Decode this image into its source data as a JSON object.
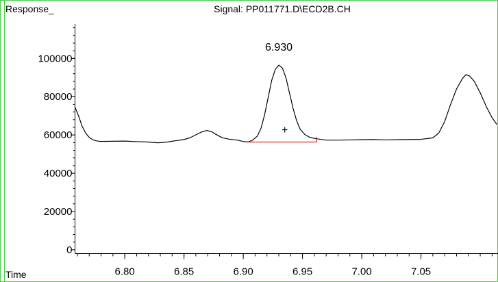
{
  "chart_data": {
    "type": "line",
    "title": "Signal: PP011771.D\\ECD2B.CH",
    "ylabel": "Response_",
    "xlabel": "Time",
    "xlim": [
      6.758,
      7.115
    ],
    "ylim": [
      -2000,
      118000
    ],
    "x_ticks": [
      {
        "value": 6.8,
        "label": "6.80"
      },
      {
        "value": 6.85,
        "label": "6.85"
      },
      {
        "value": 6.9,
        "label": "6.90"
      },
      {
        "value": 6.95,
        "label": "6.95"
      },
      {
        "value": 7.0,
        "label": "7.00"
      },
      {
        "value": 7.05,
        "label": "7.05"
      }
    ],
    "x_minor_step": 0.01,
    "y_ticks": [
      {
        "value": 0,
        "label": "0"
      },
      {
        "value": 20000,
        "label": "20000"
      },
      {
        "value": 40000,
        "label": "40000"
      },
      {
        "value": 60000,
        "label": "60000"
      },
      {
        "value": 80000,
        "label": "80000"
      },
      {
        "value": 100000,
        "label": "100000"
      }
    ],
    "y_minor_step": 4000,
    "grid": false,
    "series": [
      {
        "color": "#000000",
        "points": [
          [
            6.758,
            74500
          ],
          [
            6.761,
            70000
          ],
          [
            6.764,
            64500
          ],
          [
            6.767,
            61000
          ],
          [
            6.77,
            58700
          ],
          [
            6.773,
            57500
          ],
          [
            6.776,
            56900
          ],
          [
            6.78,
            56600
          ],
          [
            6.79,
            56700
          ],
          [
            6.8,
            56800
          ],
          [
            6.81,
            56500
          ],
          [
            6.82,
            56300
          ],
          [
            6.828,
            55900
          ],
          [
            6.836,
            56300
          ],
          [
            6.843,
            57000
          ],
          [
            6.85,
            57600
          ],
          [
            6.855,
            58500
          ],
          [
            6.86,
            60100
          ],
          [
            6.865,
            61600
          ],
          [
            6.869,
            62300
          ],
          [
            6.873,
            61800
          ],
          [
            6.877,
            60300
          ],
          [
            6.882,
            58600
          ],
          [
            6.888,
            57800
          ],
          [
            6.895,
            57300
          ],
          [
            6.9,
            56600
          ],
          [
            6.904,
            56300
          ],
          [
            6.908,
            57300
          ],
          [
            6.912,
            59500
          ],
          [
            6.915,
            63500
          ],
          [
            6.918,
            70500
          ],
          [
            6.921,
            79500
          ],
          [
            6.924,
            88500
          ],
          [
            6.927,
            94200
          ],
          [
            6.93,
            96500
          ],
          [
            6.933,
            95000
          ],
          [
            6.936,
            90000
          ],
          [
            6.939,
            82000
          ],
          [
            6.942,
            74000
          ],
          [
            6.945,
            67500
          ],
          [
            6.948,
            63000
          ],
          [
            6.952,
            60200
          ],
          [
            6.956,
            58800
          ],
          [
            6.96,
            58200
          ],
          [
            6.965,
            57700
          ],
          [
            6.97,
            57300
          ],
          [
            6.98,
            57300
          ],
          [
            6.99,
            57400
          ],
          [
            7.0,
            57500
          ],
          [
            7.01,
            57600
          ],
          [
            7.02,
            57400
          ],
          [
            7.03,
            57500
          ],
          [
            7.04,
            57600
          ],
          [
            7.05,
            57700
          ],
          [
            7.06,
            58500
          ],
          [
            7.065,
            61000
          ],
          [
            7.07,
            67000
          ],
          [
            7.075,
            76000
          ],
          [
            7.08,
            84000
          ],
          [
            7.085,
            89500
          ],
          [
            7.088,
            91500
          ],
          [
            7.091,
            90800
          ],
          [
            7.095,
            88000
          ],
          [
            7.1,
            82000
          ],
          [
            7.105,
            75000
          ],
          [
            7.11,
            69000
          ],
          [
            7.114,
            65500
          ]
        ]
      }
    ],
    "peak_annotation": {
      "label": "6.930",
      "x": 6.93,
      "y": 104000
    },
    "integration_baseline": {
      "color": "#e02020",
      "x_start": 6.904,
      "x_end": 6.962,
      "y": 56300,
      "end_tick_top": 59000
    },
    "marker": {
      "symbol": "+",
      "x": 6.935,
      "y": 60700
    },
    "frame_color": "#44cc44"
  }
}
